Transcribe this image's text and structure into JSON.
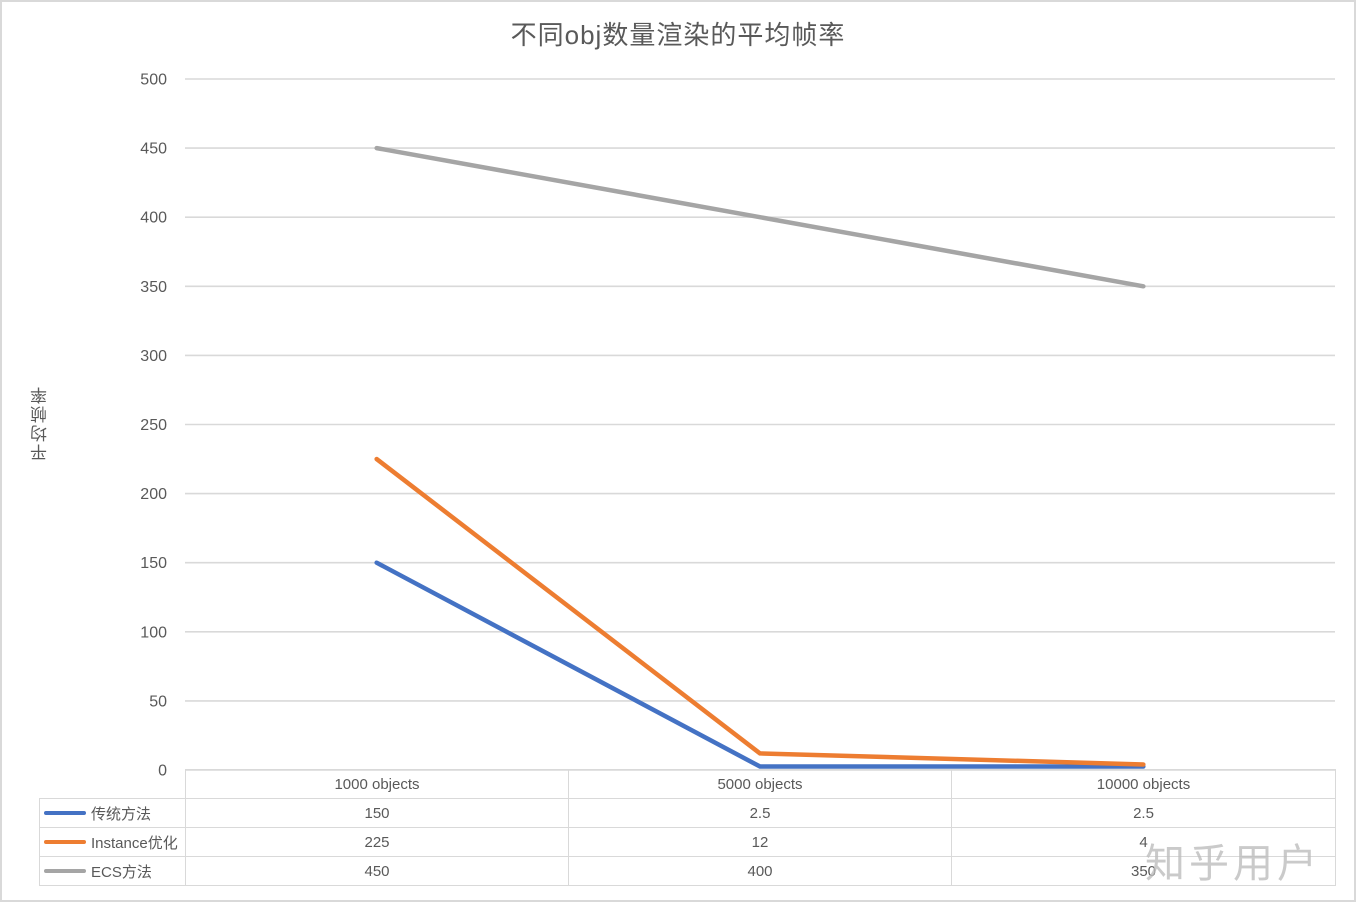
{
  "title": "不同obj数量渲染的平均帧率",
  "watermark": "知乎用户",
  "colors": {
    "series_blue": "#4472C4",
    "series_orange": "#ED7D31",
    "series_gray": "#A5A5A5",
    "gridline": "#D9D9D9",
    "text": "#595959",
    "watermark": "#BDBDBD"
  },
  "chart_data": {
    "type": "line",
    "title": "不同obj数量渲染的平均帧率",
    "ylabel": "平均帧率",
    "xlabel": "",
    "categories": [
      "1000 objects",
      "5000 objects",
      "10000 objects"
    ],
    "series": [
      {
        "name": "传统方法",
        "values": [
          150,
          2.5,
          2.5
        ],
        "color": "#4472C4"
      },
      {
        "name": "Instance优化",
        "values": [
          225,
          12,
          4
        ],
        "color": "#ED7D31"
      },
      {
        "name": "ECS方法",
        "values": [
          450,
          400,
          350
        ],
        "color": "#A5A5A5"
      }
    ],
    "ylim": [
      0,
      500
    ],
    "ytick_step": 50,
    "yticks": [
      0,
      50,
      100,
      150,
      200,
      250,
      300,
      350,
      400,
      450,
      500
    ],
    "grid": "horizontal",
    "legend_position": "data-table-left",
    "data_table": true
  }
}
